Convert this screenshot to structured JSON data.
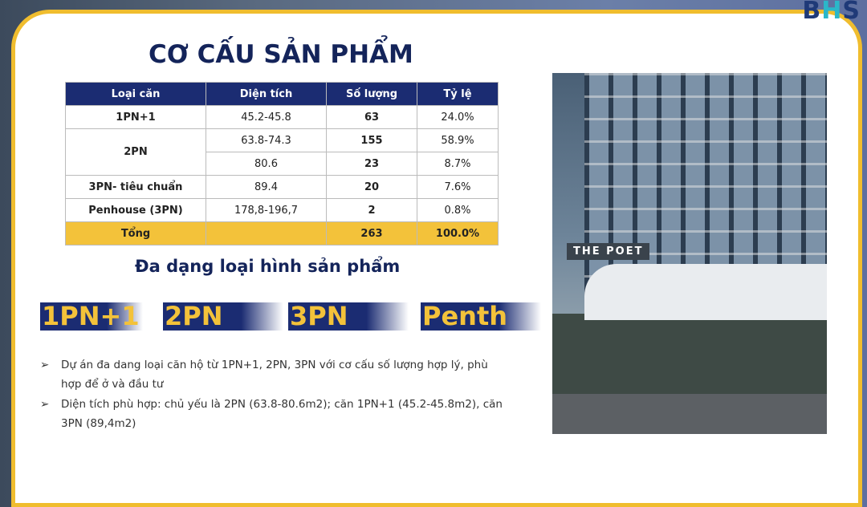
{
  "logo": {
    "text_a": "B",
    "text_b": "H",
    "text_c": "S"
  },
  "title": "CƠ CẤU SẢN PHẨM",
  "table": {
    "headers": [
      "Loại căn",
      "Diện tích",
      "Số lượng",
      "Tỷ lệ"
    ],
    "rows": [
      {
        "type": "1PN+1",
        "area": "45.2-45.8",
        "qty": "63",
        "ratio": "24.0%"
      },
      {
        "type": "2PN",
        "area": "63.8-74.3",
        "qty": "155",
        "ratio": "58.9%"
      },
      {
        "type": "",
        "area": "80.6",
        "qty": "23",
        "ratio": "8.7%"
      },
      {
        "type": "3PN- tiêu chuẩn",
        "area": "89.4",
        "qty": "20",
        "ratio": "7.6%"
      },
      {
        "type": "Penhouse (3PN)",
        "area": "178,8-196,7",
        "qty": "2",
        "ratio": "0.8%"
      }
    ],
    "total": {
      "label": "Tổng",
      "area": "",
      "qty": "263",
      "ratio": "100.0%"
    }
  },
  "subtitle": "Đa dạng loại hình sản phẩm",
  "chips": [
    "1PN+1",
    "2PN",
    "3PN",
    "Penth"
  ],
  "bullets": [
    "Dự án đa dang loại căn hộ từ 1PN+1, 2PN, 3PN với cơ cấu số lượng hợp lý, phù hợp để ở và đầu tư",
    "Diện tích phù hợp: chủ yếu là 2PN (63.8-80.6m2);  căn 1PN+1 (45.2-45.8m2), căn 3PN (89,4m2)"
  ],
  "bullet_icon": "arrowhead-icon",
  "photo": {
    "sign": "THE POET"
  },
  "colors": {
    "navy": "#1b2c72",
    "gold": "#f3c23a"
  }
}
